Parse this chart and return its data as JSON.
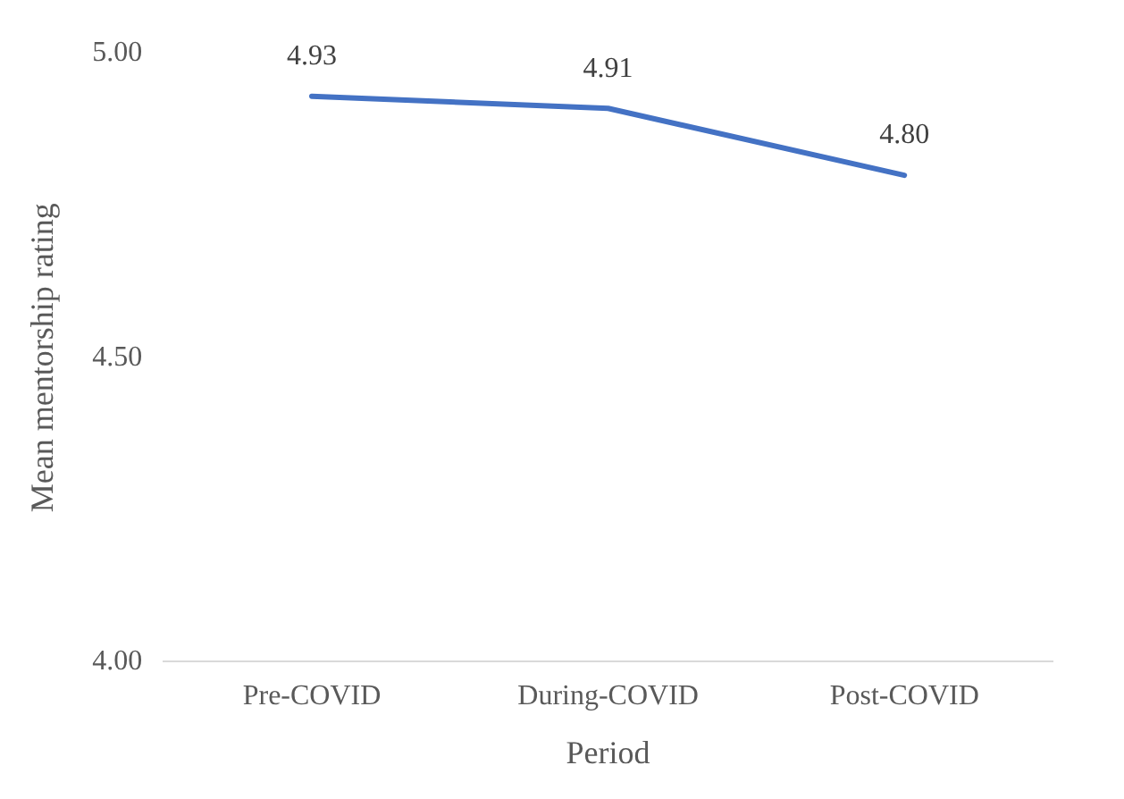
{
  "chart_data": {
    "type": "line",
    "xlabel": "Period",
    "ylabel": "Mean mentorship rating",
    "categories": [
      "Pre-COVID",
      "During-COVID",
      "Post-COVID"
    ],
    "series": [
      {
        "color": "#4472c4",
        "values": [
          4.93,
          4.91,
          4.8
        ],
        "value_labels": [
          "4.93",
          "4.91",
          "4.80"
        ]
      }
    ],
    "ylim": [
      4,
      5
    ],
    "yticks": [
      {
        "value": 4,
        "label": "4.00"
      },
      {
        "value": 4.5,
        "label": "4.50"
      },
      {
        "value": 5,
        "label": "5.00"
      }
    ],
    "grid": false,
    "legend": false,
    "marker": "none",
    "line_style": "solid"
  }
}
